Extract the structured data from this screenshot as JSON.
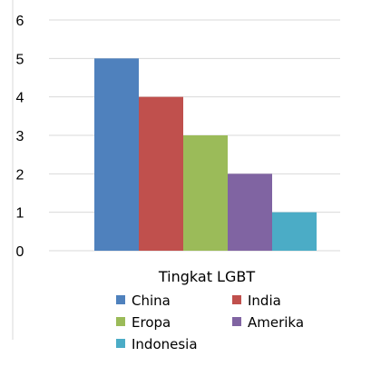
{
  "chart_data": {
    "type": "bar",
    "categories": [
      "Tingkat LGBT"
    ],
    "series": [
      {
        "name": "China",
        "values": [
          5
        ],
        "color": "#4f81bd"
      },
      {
        "name": "India",
        "values": [
          4
        ],
        "color": "#c0504d"
      },
      {
        "name": "Eropa",
        "values": [
          3
        ],
        "color": "#9bbb59"
      },
      {
        "name": "Amerika",
        "values": [
          2
        ],
        "color": "#8064a2"
      },
      {
        "name": "Indonesia",
        "values": [
          1
        ],
        "color": "#4bacc6"
      }
    ],
    "ylim": [
      0,
      6
    ],
    "yticks": [
      "0",
      "1",
      "2",
      "3",
      "4",
      "5",
      "6"
    ],
    "grid": true,
    "legend_position": "bottom"
  }
}
